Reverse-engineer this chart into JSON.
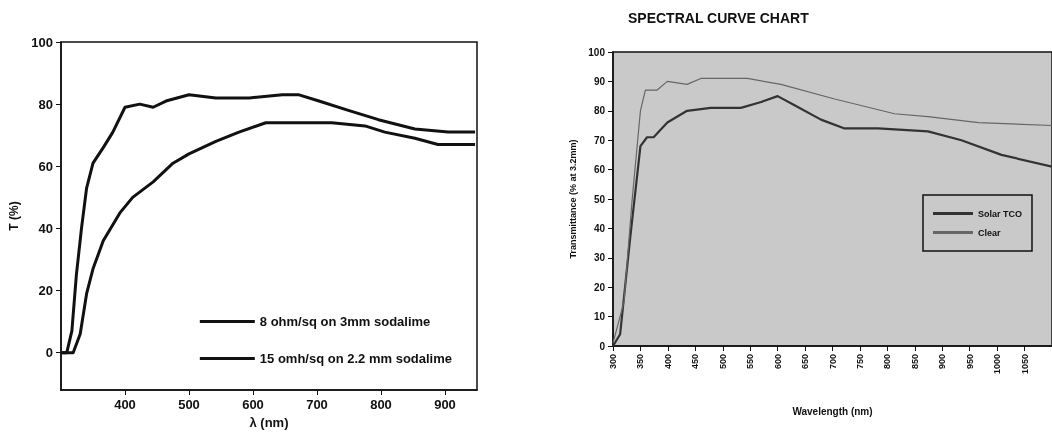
{
  "chart_data": [
    {
      "type": "line",
      "xlabel": "λ (nm)",
      "ylabel": "T (%)",
      "xlim": [
        300,
        950
      ],
      "xticks": [
        400,
        500,
        600,
        700,
        800,
        900
      ],
      "ylim": [
        -12,
        100
      ],
      "yticks": [
        0,
        20,
        40,
        60,
        80,
        100
      ],
      "grid": false,
      "legend": "bottom right",
      "marker": "none",
      "line_style": "solid",
      "series": [
        {
          "name": "8 ohm/sq on 3mm sodalime",
          "color": "#111111",
          "x": [
            300,
            309,
            317,
            324,
            332,
            340,
            350,
            366,
            381,
            400,
            423,
            444,
            464,
            500,
            542,
            594,
            646,
            672,
            703,
            749,
            796,
            853,
            905,
            947
          ],
          "values": [
            0,
            0,
            7,
            25,
            40,
            53,
            61,
            66,
            71,
            79,
            80,
            79,
            81,
            83,
            82,
            82,
            83,
            83,
            81,
            78,
            75,
            72,
            71,
            71
          ]
        },
        {
          "name": "15 omh/sq on 2.2 mm sodalime",
          "color": "#111111",
          "x": [
            300,
            319,
            330,
            340,
            350,
            366,
            392,
            412,
            444,
            475,
            500,
            542,
            578,
            620,
            672,
            723,
            775,
            806,
            853,
            889,
            947
          ],
          "values": [
            0,
            0,
            6,
            19,
            27,
            36,
            45,
            50,
            55,
            61,
            64,
            68,
            71,
            74,
            74,
            74,
            73,
            71,
            69,
            67,
            67
          ]
        }
      ]
    },
    {
      "type": "line",
      "title": "SPECTRAL CURVE CHART",
      "xlabel": "Wavelength (nm)",
      "ylabel": "Transmittance (% at 3.2mm)",
      "xlim": [
        300,
        1100
      ],
      "xticks": [
        300,
        350,
        400,
        450,
        500,
        550,
        600,
        650,
        700,
        750,
        800,
        850,
        900,
        950,
        1000,
        1050
      ],
      "ylim": [
        0,
        100
      ],
      "yticks": [
        0,
        10,
        20,
        30,
        40,
        50,
        60,
        70,
        80,
        90,
        100
      ],
      "grid": false,
      "legend": "right",
      "marker": "none",
      "line_style": "solid",
      "series": [
        {
          "name": "Solar TCO",
          "color": "#333333",
          "x": [
            300,
            313,
            332,
            350,
            362,
            374,
            399,
            435,
            478,
            533,
            570,
            600,
            630,
            679,
            722,
            783,
            874,
            935,
            1008,
            1100
          ],
          "values": [
            0,
            4,
            38,
            68,
            71,
            71,
            76,
            80,
            81,
            81,
            83,
            85,
            82,
            77,
            74,
            74,
            73,
            70,
            65,
            61
          ]
        },
        {
          "name": "Clear",
          "color": "#666666",
          "x": [
            300,
            320,
            335,
            350,
            359,
            380,
            399,
            435,
            460,
            509,
            545,
            606,
            704,
            813,
            874,
            966,
            1100
          ],
          "values": [
            1,
            15,
            50,
            80,
            87,
            87,
            90,
            89,
            91,
            91,
            91,
            89,
            84,
            79,
            78,
            76,
            75
          ]
        }
      ]
    }
  ]
}
